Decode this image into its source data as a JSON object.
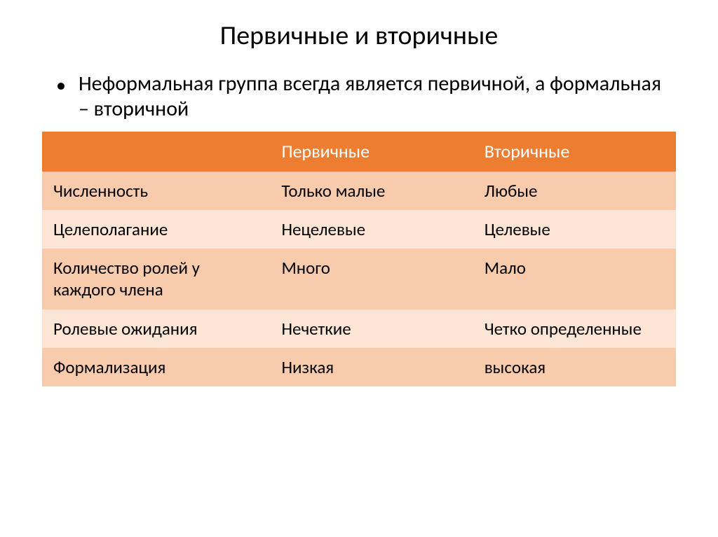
{
  "title": "Первичные и вторичные",
  "statement": "Неформальная группа всегда является первичной, а формальная – вторичной",
  "table": {
    "columns": [
      "",
      "Первичные",
      "Вторичные"
    ],
    "rows": [
      [
        "Численность",
        "Только малые",
        "Любые"
      ],
      [
        "Целеполагание",
        "Нецелевые",
        "Целевые"
      ],
      [
        "Количество ролей у каждого члена",
        "Много",
        "Мало"
      ],
      [
        "Ролевые ожидания",
        "Нечеткие",
        "Четко определенные"
      ],
      [
        "Формализация",
        "Низкая",
        "высокая"
      ]
    ],
    "header_bg": "#ed7d31",
    "header_fg": "#ffffff",
    "row_bg_dark": "#f7cbab",
    "row_bg_light": "#fce5d5",
    "cell_fg": "#000000",
    "title_fontsize": 38,
    "body_fontsize": 30,
    "cell_fontsize": 25
  }
}
